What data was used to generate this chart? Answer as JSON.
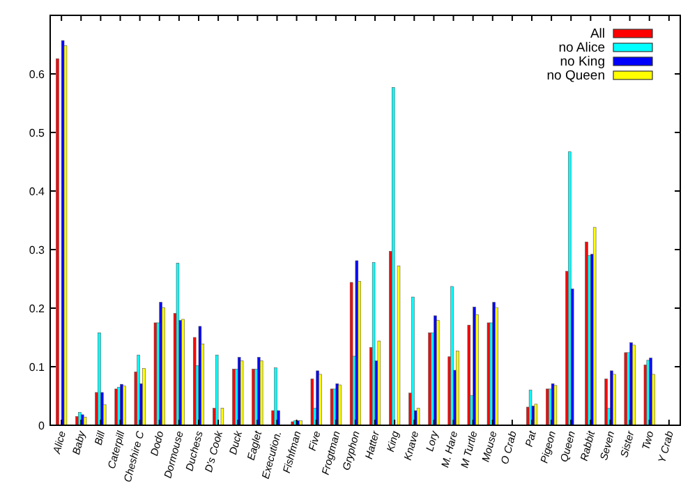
{
  "chart_data": {
    "type": "bar",
    "categories": [
      "Alice",
      "Baby",
      "Bill",
      "Caterpill",
      "Cheshire C",
      "Dodo",
      "Dormouse",
      "Duchess",
      "D's Cook",
      "Duck",
      "Eaglet",
      "Execution.",
      "Fishfman",
      "Five",
      "Frogtman",
      "Gryphon",
      "Hatter",
      "King",
      "Knave",
      "Lory",
      "M. Hare",
      "M Turtle",
      "Mouse",
      "O Crab",
      "Pat",
      "Pigeon",
      "Queen",
      "Rabbit",
      "Seven",
      "Sister",
      "Two",
      "Y Crab"
    ],
    "series": [
      {
        "name": "All",
        "color": "#ff0000",
        "values": [
          0.626,
          0.015,
          0.056,
          0.062,
          0.091,
          0.175,
          0.191,
          0.15,
          0.029,
          0.096,
          0.096,
          0.025,
          0.006,
          0.079,
          0.062,
          0.244,
          0.133,
          0.297,
          0.055,
          0.158,
          0.117,
          0.171,
          0.175,
          0,
          0.031,
          0.062,
          0.263,
          0.313,
          0.079,
          0.124,
          0.103,
          0
        ]
      },
      {
        "name": "no Alice",
        "color": "#00ffff",
        "values": [
          0,
          0.022,
          0.158,
          0.065,
          0.12,
          0.175,
          0.277,
          0.102,
          0.12,
          0.096,
          0.096,
          0.098,
          0.008,
          0.029,
          0.062,
          0.118,
          0.278,
          0.577,
          0.219,
          0.158,
          0.237,
          0.051,
          0.175,
          0,
          0.06,
          0.062,
          0.467,
          0.29,
          0.029,
          0.124,
          0.111,
          0
        ]
      },
      {
        "name": "no King",
        "color": "#0000ff",
        "values": [
          0.657,
          0.018,
          0.056,
          0.07,
          0.071,
          0.21,
          0.179,
          0.169,
          0,
          0.116,
          0.116,
          0.025,
          0.008,
          0.093,
          0.071,
          0.281,
          0.11,
          0,
          0.025,
          0.187,
          0.094,
          0.202,
          0.21,
          0,
          0.033,
          0.071,
          0.233,
          0.292,
          0.093,
          0.141,
          0.115,
          0
        ]
      },
      {
        "name": "no Queen",
        "color": "#ffff00",
        "values": [
          0.648,
          0.014,
          0.035,
          0.067,
          0.097,
          0.201,
          0.181,
          0.139,
          0.029,
          0.11,
          0.11,
          0,
          0.008,
          0.087,
          0.069,
          0.246,
          0.144,
          0.272,
          0.029,
          0.179,
          0.127,
          0.189,
          0.201,
          0,
          0.036,
          0.068,
          0,
          0.338,
          0.087,
          0.137,
          0.087,
          0
        ]
      }
    ],
    "ylim": [
      0,
      0.7
    ],
    "yticks": [
      0,
      0.1,
      0.2,
      0.3,
      0.4,
      0.5,
      0.6
    ],
    "legend": "top right",
    "grid": false
  }
}
